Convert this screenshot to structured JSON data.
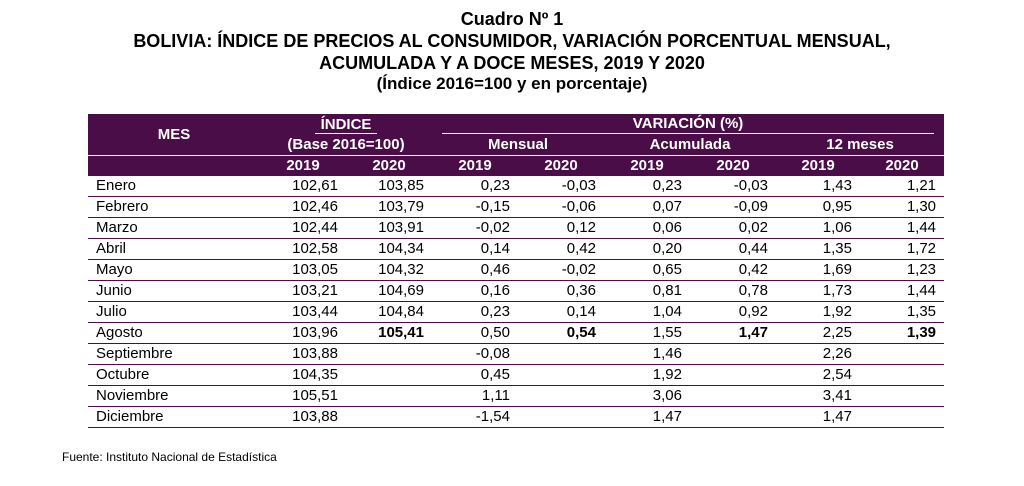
{
  "title": {
    "line1": "Cuadro Nº 1",
    "line2": "BOLIVIA: ÍNDICE DE PRECIOS AL CONSUMIDOR, VARIACIÓN PORCENTUAL MENSUAL,",
    "line3": "ACUMULADA Y A DOCE MESES, 2019 Y 2020",
    "line4": "(Índice 2016=100 y en porcentaje)"
  },
  "header": {
    "mes": "MES",
    "indice": "ÍNDICE",
    "base": "(Base 2016=100)",
    "variacion": "VARIACIÓN (%)",
    "mensual": "Mensual",
    "acumulada": "Acumulada",
    "doce": "12 meses",
    "years": [
      "2019",
      "2020",
      "2019",
      "2020",
      "2019",
      "2020",
      "2019",
      "2020"
    ]
  },
  "rows": [
    {
      "mes": "Enero",
      "v": [
        "102,61",
        "103,85",
        "0,23",
        "-0,03",
        "0,23",
        "-0,03",
        "1,43",
        "1,21"
      ]
    },
    {
      "mes": "Febrero",
      "v": [
        "102,46",
        "103,79",
        "-0,15",
        "-0,06",
        "0,07",
        "-0,09",
        "0,95",
        "1,30"
      ]
    },
    {
      "mes": "Marzo",
      "v": [
        "102,44",
        "103,91",
        "-0,02",
        "0,12",
        "0,06",
        "0,02",
        "1,06",
        "1,44"
      ]
    },
    {
      "mes": "Abril",
      "v": [
        "102,58",
        "104,34",
        "0,14",
        "0,42",
        "0,20",
        "0,44",
        "1,35",
        "1,72"
      ]
    },
    {
      "mes": "Mayo",
      "v": [
        "103,05",
        "104,32",
        "0,46",
        "-0,02",
        "0,65",
        "0,42",
        "1,69",
        "1,23"
      ]
    },
    {
      "mes": "Junio",
      "v": [
        "103,21",
        "104,69",
        "0,16",
        "0,36",
        "0,81",
        "0,78",
        "1,73",
        "1,44"
      ]
    },
    {
      "mes": "Julio",
      "v": [
        "103,44",
        "104,84",
        "0,23",
        "0,14",
        "1,04",
        "0,92",
        "1,92",
        "1,35"
      ]
    },
    {
      "mes": "Agosto",
      "v": [
        "103,96",
        "105,41",
        "0,50",
        "0,54",
        "1,55",
        "1,47",
        "2,25",
        "1,39"
      ]
    },
    {
      "mes": "Septiembre",
      "v": [
        "103,88",
        "",
        "-0,08",
        "",
        "1,46",
        "",
        "2,26",
        ""
      ]
    },
    {
      "mes": "Octubre",
      "v": [
        "104,35",
        "",
        "0,45",
        "",
        "1,92",
        "",
        "2,54",
        ""
      ]
    },
    {
      "mes": "Noviembre",
      "v": [
        "105,51",
        "",
        "1,11",
        "",
        "3,06",
        "",
        "3,41",
        ""
      ]
    },
    {
      "mes": "Diciembre",
      "v": [
        "103,88",
        "",
        "-1,54",
        "",
        "1,47",
        "",
        "1,47",
        ""
      ]
    }
  ],
  "footer": "Fuente: Instituto Nacional de Estadística",
  "colors": {
    "header_bg": "#4a0d47",
    "header_text": "#ffffff"
  }
}
